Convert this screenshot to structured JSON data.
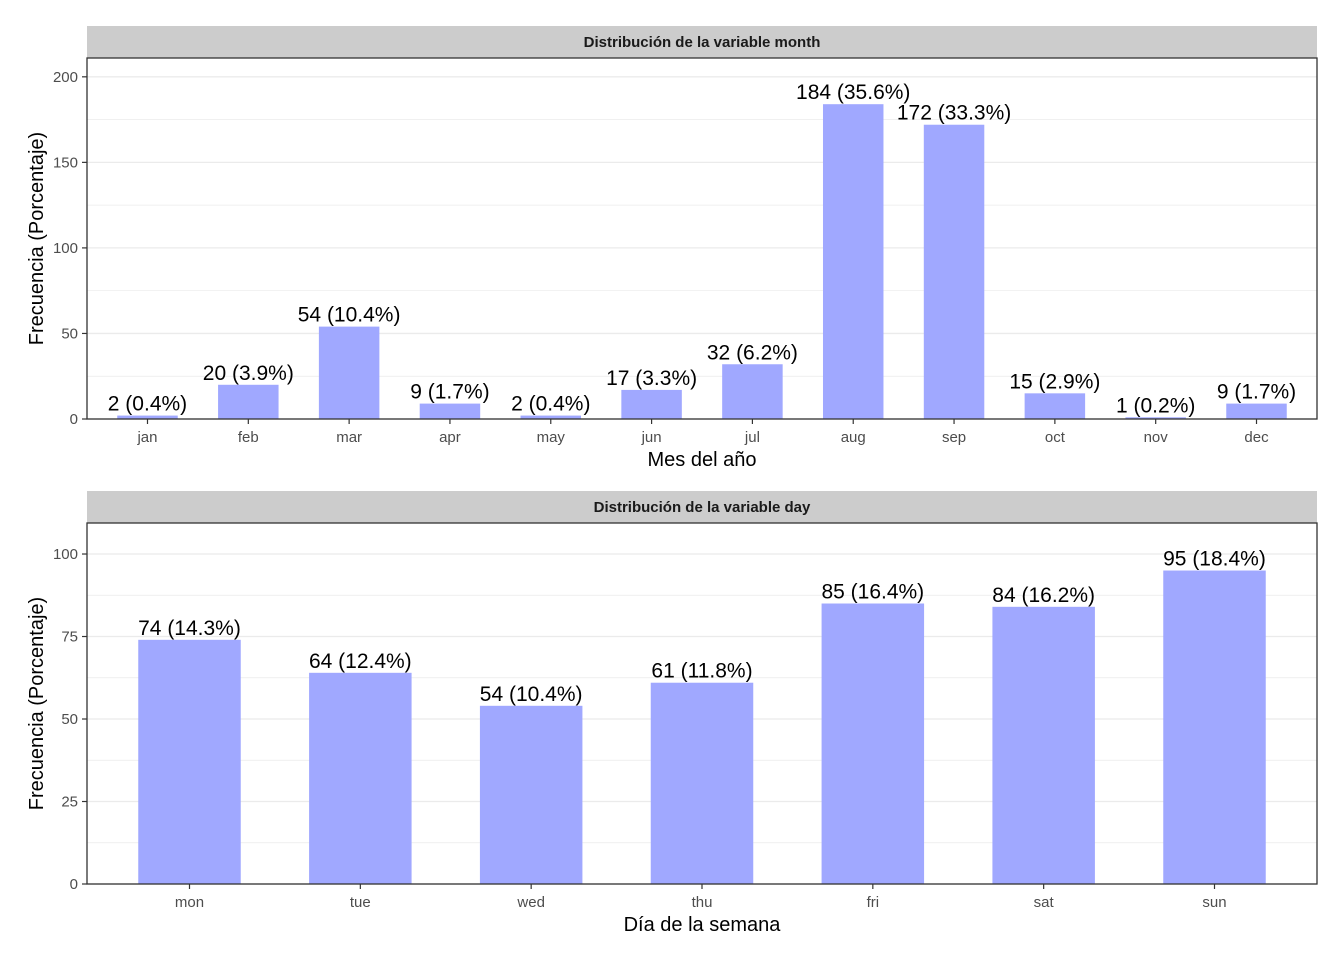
{
  "chart_data": [
    {
      "type": "bar",
      "title": "Distribución de la variable month",
      "xlabel": "Mes del año",
      "ylabel": "Frecuencia (Porcentaje)",
      "categories": [
        "jan",
        "feb",
        "mar",
        "apr",
        "may",
        "jun",
        "jul",
        "aug",
        "sep",
        "oct",
        "nov",
        "dec"
      ],
      "values": [
        2,
        20,
        54,
        9,
        2,
        17,
        32,
        184,
        172,
        15,
        1,
        9
      ],
      "labels": [
        "2 (0.4%)",
        "20 (3.9%)",
        "54 (10.4%)",
        "9 (1.7%)",
        "2 (0.4%)",
        "17 (3.3%)",
        "32 (6.2%)",
        "184 (35.6%)",
        "172 (33.3%)",
        "15 (2.9%)",
        "1 (0.2%)",
        "9 (1.7%)"
      ],
      "ylim": [
        0,
        211
      ],
      "yticks": [
        0,
        50,
        100,
        150,
        200
      ],
      "grid": true,
      "bar_color": "#a0a8ff"
    },
    {
      "type": "bar",
      "title": "Distribución de la variable day",
      "xlabel": "Día de la semana",
      "ylabel": "Frecuencia (Porcentaje)",
      "categories": [
        "mon",
        "tue",
        "wed",
        "thu",
        "fri",
        "sat",
        "sun"
      ],
      "values": [
        74,
        64,
        54,
        61,
        85,
        84,
        95
      ],
      "labels": [
        "74 (14.3%)",
        "64 (12.4%)",
        "54 (10.4%)",
        "61 (11.8%)",
        "85 (16.4%)",
        "84 (16.2%)",
        "95 (18.4%)"
      ],
      "ylim": [
        0,
        109.4
      ],
      "yticks": [
        0,
        25,
        50,
        75,
        100
      ],
      "grid": true,
      "bar_color": "#a0a8ff"
    }
  ],
  "colors": {
    "bar": "#a0a8ff",
    "strip_background": "#cccccc",
    "grid": "#ebebeb",
    "panel_border": "#333333"
  }
}
